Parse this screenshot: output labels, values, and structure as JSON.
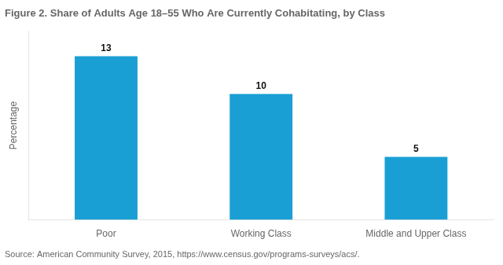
{
  "chart_data": {
    "type": "bar",
    "title": "Figure 2. Share of Adults Age 18–55 Who Are Currently Cohabitating, by Class",
    "categories": [
      "Poor",
      "Working Class",
      "Middle and Upper Class"
    ],
    "values": [
      13,
      10,
      5
    ],
    "color": "#1a9fd4",
    "ylabel": "Percentage",
    "ylim": [
      0,
      15
    ],
    "grid": false,
    "data_labels": true,
    "tick_labels": "x",
    "annotations": [
      "Source: American Community Survey, 2015, https://www.census.gov/programs-surveys/acs/."
    ]
  }
}
